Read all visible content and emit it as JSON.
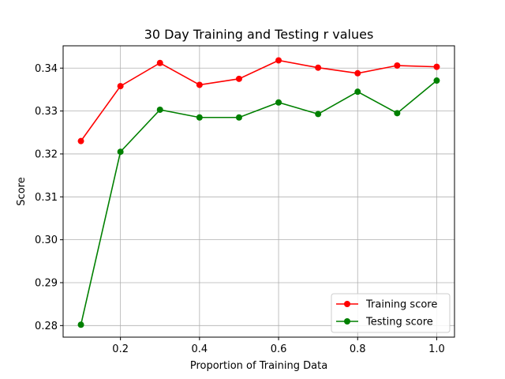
{
  "chart_data": {
    "type": "line",
    "title": "30 Day Training and Testing r values",
    "xlabel": "Proportion of Training Data",
    "ylabel": "Score",
    "x": [
      0.1,
      0.2,
      0.3,
      0.4,
      0.5,
      0.6,
      0.7,
      0.8,
      0.9,
      1.0
    ],
    "xlim": [
      0.055,
      1.045
    ],
    "ylim": [
      0.2773,
      0.3452
    ],
    "x_ticks": [
      0.2,
      0.4,
      0.6,
      0.8,
      1.0
    ],
    "x_tick_labels": [
      "0.2",
      "0.4",
      "0.6",
      "0.8",
      "1.0"
    ],
    "y_ticks": [
      0.28,
      0.29,
      0.3,
      0.31,
      0.32,
      0.33,
      0.34
    ],
    "y_tick_labels": [
      "0.28",
      "0.29",
      "0.30",
      "0.31",
      "0.32",
      "0.33",
      "0.34"
    ],
    "grid": true,
    "legend_position": "bottom-right",
    "series": [
      {
        "name": "Training score",
        "color": "#ff0000",
        "values": [
          0.323,
          0.3358,
          0.3412,
          0.3361,
          0.3375,
          0.3418,
          0.3401,
          0.3388,
          0.3406,
          0.3403
        ]
      },
      {
        "name": "Testing score",
        "color": "#008000",
        "values": [
          0.2802,
          0.3205,
          0.3303,
          0.3285,
          0.3285,
          0.332,
          0.3293,
          0.3345,
          0.3295,
          0.3371
        ]
      }
    ]
  }
}
